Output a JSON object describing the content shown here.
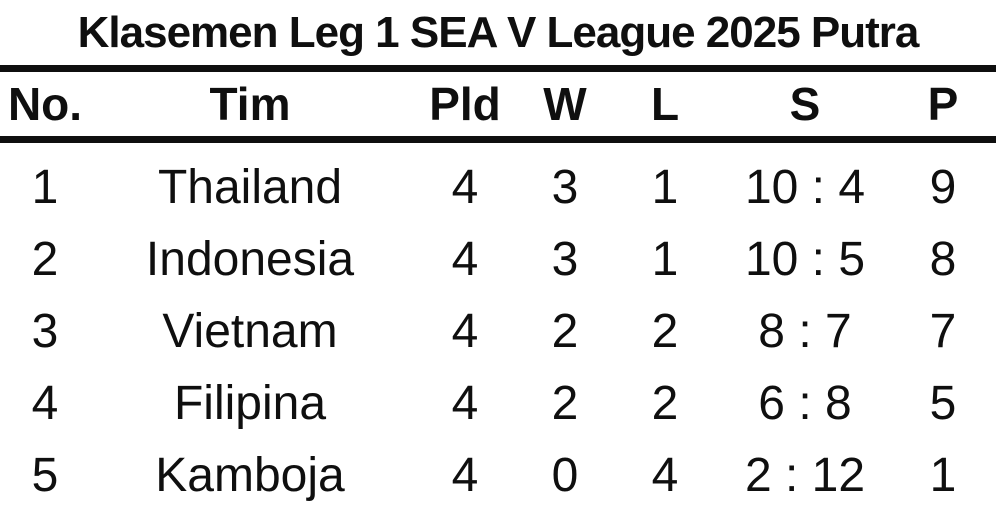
{
  "title": "Klasemen Leg 1 SEA V League 2025 Putra",
  "colors": {
    "text": "#0f0f0f",
    "background": "#ffffff",
    "rule": "#0f0f0f"
  },
  "table": {
    "columns": {
      "no": "No.",
      "tim": "Tim",
      "pld": "Pld",
      "w": "W",
      "l": "L",
      "s": "S",
      "p": "P"
    },
    "rows": [
      {
        "no": "1",
        "tim": "Thailand",
        "pld": "4",
        "w": "3",
        "l": "1",
        "s": "10 : 4",
        "p": "9"
      },
      {
        "no": "2",
        "tim": "Indonesia",
        "pld": "4",
        "w": "3",
        "l": "1",
        "s": "10 : 5",
        "p": "8"
      },
      {
        "no": "3",
        "tim": "Vietnam",
        "pld": "4",
        "w": "2",
        "l": "2",
        "s": "8 : 7",
        "p": "7"
      },
      {
        "no": "4",
        "tim": "Filipina",
        "pld": "4",
        "w": "2",
        "l": "2",
        "s": "6 : 8",
        "p": "5"
      },
      {
        "no": "5",
        "tim": "Kamboja",
        "pld": "4",
        "w": "0",
        "l": "4",
        "s": "2 : 12",
        "p": "1"
      }
    ]
  }
}
